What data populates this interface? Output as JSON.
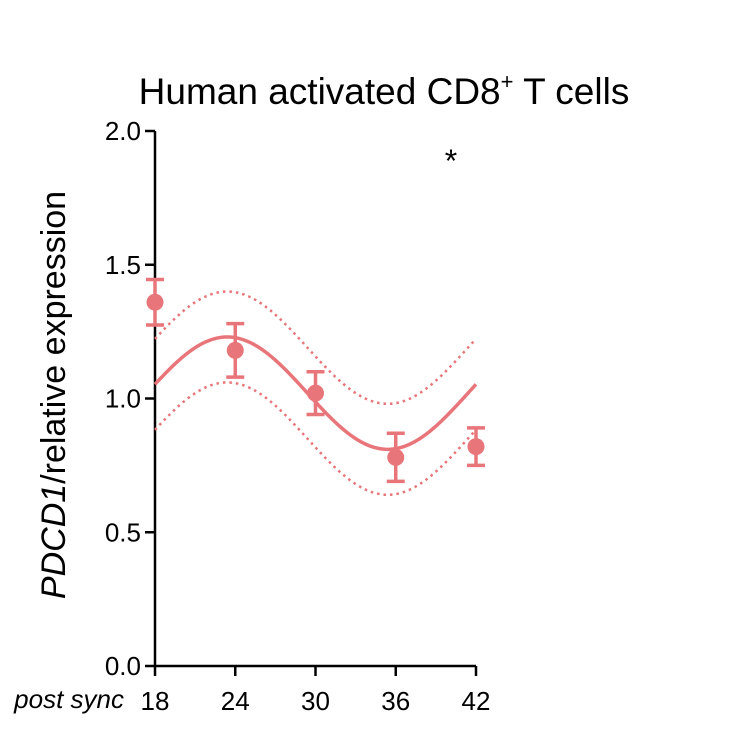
{
  "chart_data": {
    "type": "scatter",
    "title_main": "Human activated CD8",
    "title_sup": "+",
    "title_rest": " T cells",
    "ylabel_italic": "PDCD1",
    "ylabel_rest": "/relative expression",
    "xlabel": "post sync",
    "x_ticks": [
      18,
      24,
      30,
      36,
      42
    ],
    "y_ticks": [
      "0.0",
      "0.5",
      "1.0",
      "1.5",
      "2.0"
    ],
    "xlim": [
      18,
      42
    ],
    "ylim": [
      0,
      2
    ],
    "points": [
      {
        "x": 18,
        "y": 1.36,
        "err": 0.085
      },
      {
        "x": 24,
        "y": 1.18,
        "err": 0.1
      },
      {
        "x": 30,
        "y": 1.02,
        "err": 0.08
      },
      {
        "x": 36,
        "y": 0.78,
        "err": 0.09
      },
      {
        "x": 42,
        "y": 0.82,
        "err": 0.07
      }
    ],
    "fit": {
      "type": "cosinor",
      "mesor": 1.02,
      "amplitude": 0.21,
      "period": 24,
      "peak_x": 23.4
    },
    "confidence_band_half_width": 0.17,
    "annotation": "*",
    "colors": {
      "series": "#e8757a",
      "axis": "#000000"
    }
  }
}
